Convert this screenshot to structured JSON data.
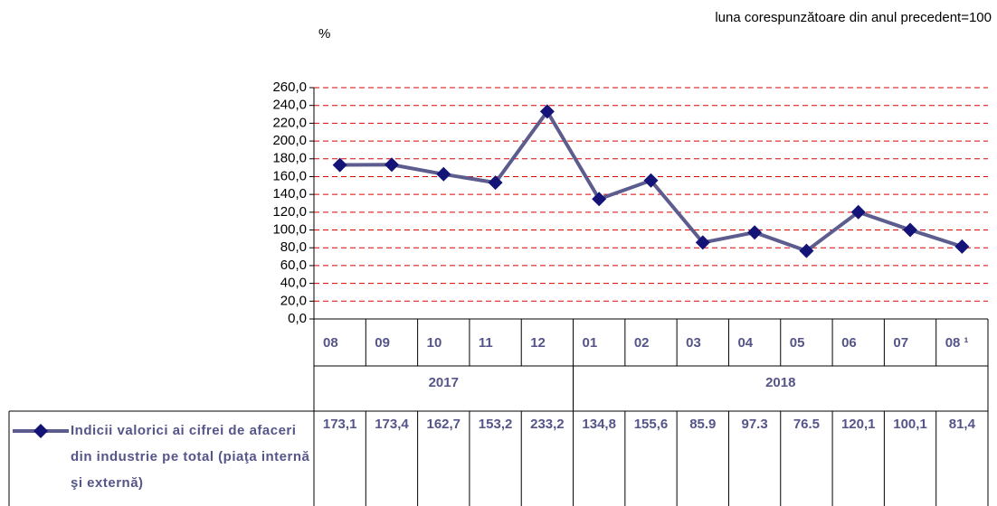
{
  "chart_data": {
    "type": "line",
    "unit_label": "%",
    "note": "luna corespunzătoare din anul precedent=100",
    "categories": [
      "08",
      "09",
      "10",
      "11",
      "12",
      "01",
      "02",
      "03",
      "04",
      "05",
      "06",
      "07",
      "08 ¹"
    ],
    "groups": [
      {
        "label": "2017",
        "size": 5
      },
      {
        "label": "2018",
        "size": 8
      }
    ],
    "series": [
      {
        "name": "Indicii valorici ai cifrei de afaceri din industrie pe total (piaţa internă şi externă)",
        "color": "#5c5c8e",
        "marker_color": "#141478",
        "values": [
          173.1,
          173.4,
          162.7,
          153.2,
          233.2,
          134.8,
          155.6,
          85.9,
          97.3,
          76.5,
          120.1,
          100.1,
          81.4
        ],
        "value_labels": [
          "173,1",
          "173,4",
          "162,7",
          "153,2",
          "233,2",
          "134,8",
          "155,6",
          "85.9",
          "97.3",
          "76.5",
          "120,1",
          "100,1",
          "81,4"
        ]
      }
    ],
    "ylim": [
      0,
      260
    ],
    "yticks": [
      {
        "value": 0,
        "label": "0,0"
      },
      {
        "value": 20,
        "label": "20,0"
      },
      {
        "value": 40,
        "label": "40,0"
      },
      {
        "value": 60,
        "label": "60,0"
      },
      {
        "value": 80,
        "label": "80,0"
      },
      {
        "value": 100,
        "label": "100,0"
      },
      {
        "value": 120,
        "label": "120,0"
      },
      {
        "value": 140,
        "label": "140,0"
      },
      {
        "value": 160,
        "label": "160,0"
      },
      {
        "value": 180,
        "label": "180,0"
      },
      {
        "value": 200,
        "label": "200,0"
      },
      {
        "value": 220,
        "label": "220,0"
      },
      {
        "value": 240,
        "label": "240,0"
      },
      {
        "value": 260,
        "label": "260,0"
      }
    ],
    "grid": true,
    "grid_color": "#e00000"
  }
}
